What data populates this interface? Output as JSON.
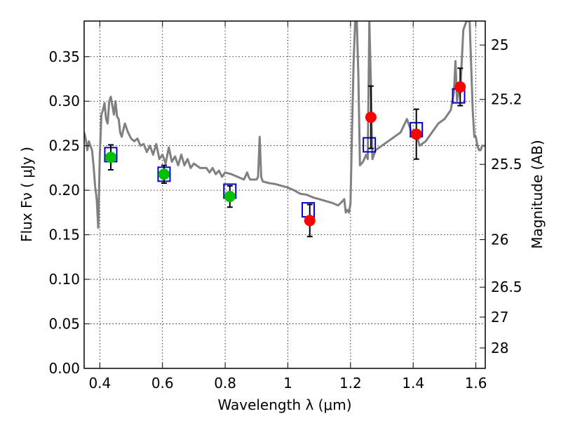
{
  "chart_data": {
    "type": "scatter",
    "title": "",
    "xlabel": "Wavelength  λ (μm)",
    "ylabel": "Flux  Fν  ( μJy )",
    "y2label": "Magnitude (AB)",
    "xlim": [
      0.35,
      1.63
    ],
    "ylim": [
      0.0,
      0.39
    ],
    "grid": true,
    "x_ticks": [
      0.4,
      0.6,
      0.8,
      1.0,
      1.2,
      1.4,
      1.6
    ],
    "x_tick_labels": [
      "0.4",
      "0.6",
      "0.8",
      "1",
      "1.2",
      "1.4",
      "1.6"
    ],
    "y_ticks": [
      0.0,
      0.05,
      0.1,
      0.15,
      0.2,
      0.25,
      0.3,
      0.35
    ],
    "y_tick_labels": [
      "0.00",
      "0.05",
      "0.10",
      "0.15",
      "0.20",
      "0.25",
      "0.30",
      "0.35"
    ],
    "y2_ticks": [
      25,
      25.2,
      25.5,
      26,
      26.5,
      27,
      28
    ],
    "y2_tick_labels": [
      "25",
      "25.2",
      "25.5",
      "26",
      "26.5",
      "27",
      "28"
    ],
    "series": [
      {
        "kind": "line",
        "color": "#808080",
        "x": [
          0.35,
          0.355,
          0.36,
          0.365,
          0.37,
          0.375,
          0.38,
          0.385,
          0.39,
          0.395,
          0.4,
          0.405,
          0.41,
          0.415,
          0.42,
          0.425,
          0.43,
          0.435,
          0.44,
          0.445,
          0.45,
          0.455,
          0.46,
          0.465,
          0.47,
          0.475,
          0.48,
          0.49,
          0.5,
          0.51,
          0.52,
          0.53,
          0.54,
          0.55,
          0.56,
          0.57,
          0.58,
          0.59,
          0.6,
          0.61,
          0.62,
          0.63,
          0.64,
          0.65,
          0.66,
          0.67,
          0.68,
          0.69,
          0.7,
          0.72,
          0.74,
          0.75,
          0.76,
          0.77,
          0.78,
          0.79,
          0.8,
          0.82,
          0.84,
          0.86,
          0.87,
          0.875,
          0.88,
          0.9,
          0.905,
          0.91,
          0.915,
          0.92,
          0.94,
          0.96,
          0.98,
          1.0,
          1.02,
          1.04,
          1.06,
          1.08,
          1.1,
          1.12,
          1.14,
          1.16,
          1.17,
          1.18,
          1.185,
          1.19,
          1.195,
          1.2,
          1.205,
          1.21,
          1.215,
          1.22,
          1.225,
          1.23,
          1.24,
          1.25,
          1.255,
          1.26,
          1.265,
          1.27,
          1.28,
          1.3,
          1.32,
          1.34,
          1.36,
          1.38,
          1.4,
          1.41,
          1.42,
          1.44,
          1.46,
          1.48,
          1.5,
          1.52,
          1.53,
          1.535,
          1.54,
          1.545,
          1.55,
          1.56,
          1.57,
          1.58,
          1.585,
          1.59,
          1.595,
          1.6,
          1.605,
          1.61,
          1.615,
          1.62,
          1.63
        ],
        "y": [
          0.265,
          0.258,
          0.245,
          0.255,
          0.25,
          0.245,
          0.228,
          0.205,
          0.19,
          0.158,
          0.238,
          0.285,
          0.29,
          0.298,
          0.28,
          0.275,
          0.3,
          0.305,
          0.295,
          0.285,
          0.3,
          0.283,
          0.28,
          0.265,
          0.26,
          0.268,
          0.275,
          0.265,
          0.258,
          0.255,
          0.258,
          0.25,
          0.252,
          0.243,
          0.25,
          0.24,
          0.252,
          0.235,
          0.24,
          0.23,
          0.248,
          0.232,
          0.238,
          0.228,
          0.24,
          0.228,
          0.235,
          0.225,
          0.23,
          0.225,
          0.225,
          0.22,
          0.225,
          0.218,
          0.222,
          0.215,
          0.22,
          0.218,
          0.215,
          0.212,
          0.22,
          0.215,
          0.212,
          0.212,
          0.215,
          0.26,
          0.215,
          0.21,
          0.208,
          0.207,
          0.205,
          0.203,
          0.2,
          0.196,
          0.195,
          0.192,
          0.19,
          0.188,
          0.186,
          0.183,
          0.186,
          0.19,
          0.175,
          0.178,
          0.175,
          0.185,
          0.27,
          0.345,
          0.39,
          0.39,
          0.33,
          0.228,
          0.232,
          0.24,
          0.235,
          0.39,
          0.32,
          0.235,
          0.245,
          0.25,
          0.255,
          0.26,
          0.265,
          0.28,
          0.26,
          0.265,
          0.25,
          0.255,
          0.265,
          0.275,
          0.28,
          0.29,
          0.31,
          0.345,
          0.3,
          0.31,
          0.31,
          0.38,
          0.39,
          0.39,
          0.34,
          0.29,
          0.26,
          0.26,
          0.25,
          0.245,
          0.245,
          0.25,
          0.25
        ]
      },
      {
        "kind": "model-points",
        "marker": "square",
        "color": "#0000cc",
        "x": [
          0.435,
          0.605,
          0.815,
          1.065,
          1.26,
          1.41,
          1.545
        ],
        "y": [
          0.24,
          0.218,
          0.199,
          0.178,
          0.251,
          0.268,
          0.306
        ]
      },
      {
        "kind": "points",
        "marker": "circle",
        "color": "#00c000",
        "x": [
          0.435,
          0.605,
          0.815
        ],
        "y": [
          0.237,
          0.218,
          0.193
        ],
        "err": [
          0.014,
          0.01,
          0.012
        ]
      },
      {
        "kind": "points",
        "marker": "circle",
        "color": "#ff0000",
        "x": [
          1.07,
          1.265,
          1.41,
          1.55
        ],
        "y": [
          0.166,
          0.282,
          0.263,
          0.316
        ],
        "err": [
          0.018,
          0.035,
          0.028,
          0.021
        ]
      }
    ]
  }
}
